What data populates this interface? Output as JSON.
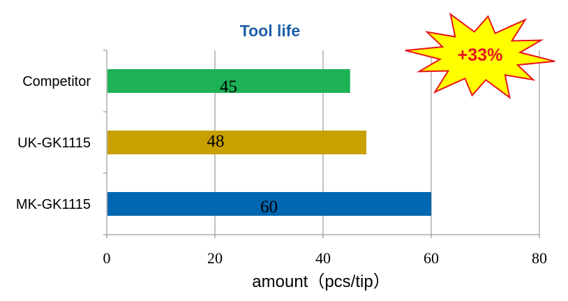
{
  "chart_data": {
    "type": "bar",
    "orientation": "horizontal",
    "title": "Tool life",
    "xlabel": "amount（pcs/tip）",
    "ylabel": "",
    "categories": [
      "Competitor",
      "UK-GK1115",
      "MK-GK1115"
    ],
    "values": [
      45,
      48,
      60
    ],
    "bar_colors": [
      "#1eb257",
      "#c8a000",
      "#0067b0"
    ],
    "data_labels": [
      "45",
      "48",
      "60"
    ],
    "xlim": [
      0,
      80
    ],
    "xticks": [
      "0",
      "20",
      "40",
      "60",
      "80"
    ],
    "xtick_values": [
      0,
      20,
      40,
      60,
      80
    ],
    "grid": true,
    "legend": "none"
  },
  "callout": {
    "text": "+33%",
    "fill": "#ffff00",
    "stroke": "#e8141c"
  },
  "colors": {
    "title": "#1f5fa8",
    "gridline": "#868686"
  }
}
